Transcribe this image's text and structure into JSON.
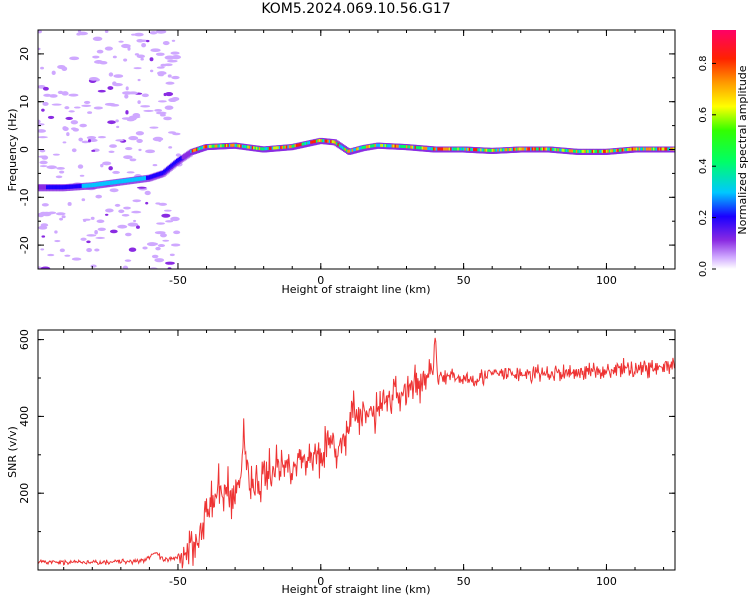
{
  "title": "KOM5.2024.069.10.56.G17",
  "chart_data": [
    {
      "type": "heatmap",
      "xlabel": "Height of straight line (km)",
      "ylabel": "Frequency (Hz)",
      "xlim": [
        -99,
        124
      ],
      "ylim": [
        -25,
        25
      ],
      "xticks": [
        -50,
        0,
        50,
        100
      ],
      "yticks": [
        -20,
        -10,
        0,
        10,
        20
      ],
      "colorbar": {
        "label": "Normalized spectral amplitude",
        "range": [
          0,
          0.93
        ],
        "ticks": [
          0.0,
          0.2,
          0.4,
          0.6,
          0.8
        ]
      },
      "track": [
        {
          "x": -99,
          "y": -8
        },
        {
          "x": -90,
          "y": -8
        },
        {
          "x": -80,
          "y": -7.6
        },
        {
          "x": -70,
          "y": -6.8
        },
        {
          "x": -60,
          "y": -6
        },
        {
          "x": -55,
          "y": -5
        },
        {
          "x": -50,
          "y": -2.5
        },
        {
          "x": -45,
          "y": -0.5
        },
        {
          "x": -40,
          "y": 0.5
        },
        {
          "x": -30,
          "y": 0.8
        },
        {
          "x": -20,
          "y": 0
        },
        {
          "x": -10,
          "y": 0.5
        },
        {
          "x": 0,
          "y": 1.8
        },
        {
          "x": 5,
          "y": 1.5
        },
        {
          "x": 10,
          "y": -0.5
        },
        {
          "x": 15,
          "y": 0.3
        },
        {
          "x": 20,
          "y": 0.8
        },
        {
          "x": 30,
          "y": 0.5
        },
        {
          "x": 40,
          "y": 0
        },
        {
          "x": 50,
          "y": 0
        },
        {
          "x": 60,
          "y": -0.3
        },
        {
          "x": 70,
          "y": 0
        },
        {
          "x": 80,
          "y": 0
        },
        {
          "x": 90,
          "y": -0.5
        },
        {
          "x": 100,
          "y": -0.5
        },
        {
          "x": 110,
          "y": 0
        },
        {
          "x": 124,
          "y": 0
        }
      ]
    },
    {
      "type": "line",
      "xlabel": "Height of straight line (km)",
      "ylabel": "SNR (v/v)",
      "xlim": [
        -99,
        124
      ],
      "ylim": [
        0,
        625
      ],
      "xticks": [
        -50,
        0,
        50,
        100
      ],
      "yticks": [
        200,
        400,
        600
      ],
      "series": [
        {
          "color": "#ee3333",
          "x": [
            -99,
            -90,
            -80,
            -70,
            -62,
            -58,
            -55,
            -50,
            -47,
            -44,
            -42,
            -40,
            -37,
            -35,
            -33,
            -30,
            -28,
            -27,
            -25,
            -22,
            -20,
            -18,
            -15,
            -12,
            -10,
            -8,
            -5,
            -2,
            0,
            3,
            5,
            8,
            10,
            11,
            12,
            15,
            18,
            20,
            22,
            25,
            28,
            30,
            32,
            35,
            38,
            39,
            40,
            41,
            45,
            50,
            55,
            60,
            70,
            80,
            90,
            100,
            110,
            124
          ],
          "y": [
            20,
            20,
            20,
            22,
            25,
            45,
            25,
            30,
            55,
            80,
            110,
            150,
            180,
            210,
            200,
            195,
            240,
            360,
            230,
            220,
            240,
            260,
            270,
            270,
            280,
            280,
            290,
            300,
            310,
            330,
            310,
            330,
            360,
            460,
            380,
            400,
            410,
            420,
            440,
            450,
            460,
            470,
            480,
            490,
            500,
            530,
            620,
            500,
            500,
            500,
            500,
            510,
            510,
            510,
            515,
            520,
            525,
            530
          ]
        }
      ]
    }
  ],
  "colors": {
    "snr_line": "#ee3333",
    "axis": "#000000"
  }
}
